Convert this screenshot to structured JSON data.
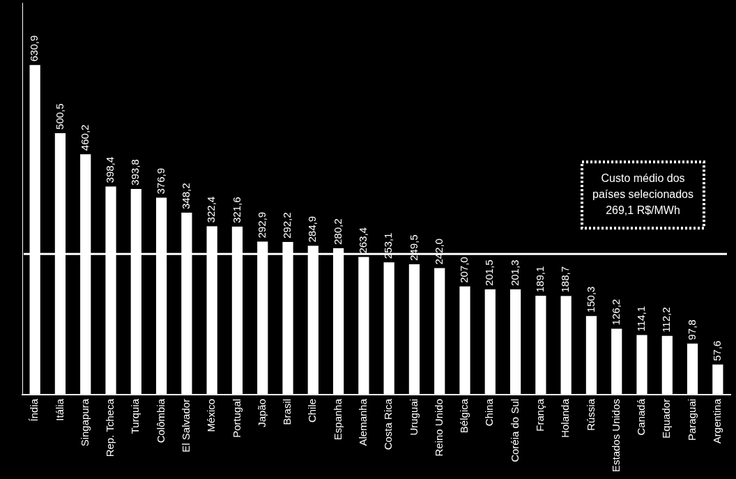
{
  "chart_data": {
    "type": "bar",
    "categories": [
      "Índia",
      "Itália",
      "Singapura",
      "Rep. Tcheca",
      "Turquia",
      "Colômbia",
      "El Salvador",
      "México",
      "Portugal",
      "Japão",
      "Brasil",
      "Chile",
      "Espanha",
      "Alemanha",
      "Costa Rica",
      "Uruguai",
      "Reino Unido",
      "Bélgica",
      "China",
      "Coréia do Sul",
      "França",
      "Holanda",
      "Rússia",
      "Estados Unidos",
      "Canadá",
      "Equador",
      "Paraguai",
      "Argentina"
    ],
    "values": [
      630.9,
      500.5,
      460.2,
      398.4,
      393.8,
      376.9,
      348.2,
      322.4,
      321.6,
      292.9,
      292.2,
      284.9,
      280.2,
      263.4,
      253.1,
      249.5,
      242.0,
      207.0,
      201.5,
      201.3,
      189.1,
      188.7,
      150.3,
      126.2,
      114.1,
      112.2,
      97.8,
      57.6
    ],
    "value_labels": [
      "630,9",
      "500,5",
      "460,2",
      "398,4",
      "393,8",
      "376,9",
      "348,2",
      "322,4",
      "321,6",
      "292,9",
      "292,2",
      "284,9",
      "280,2",
      "263,4",
      "253,1",
      "249,5",
      "242,0",
      "207,0",
      "201,5",
      "201,3",
      "189,1",
      "188,7",
      "150,3",
      "126,2",
      "114,1",
      "112,2",
      "97,8",
      "57,6"
    ],
    "color": "#ffffff",
    "ylim": [
      0,
      750
    ],
    "yticks": [
      0
    ],
    "grid": false,
    "data_labels": true,
    "tick_labels": "x",
    "average": {
      "value": 269.1,
      "label": [
        "Custo médio dos",
        "países selecionados",
        "269,1 R$/MWh"
      ]
    }
  }
}
